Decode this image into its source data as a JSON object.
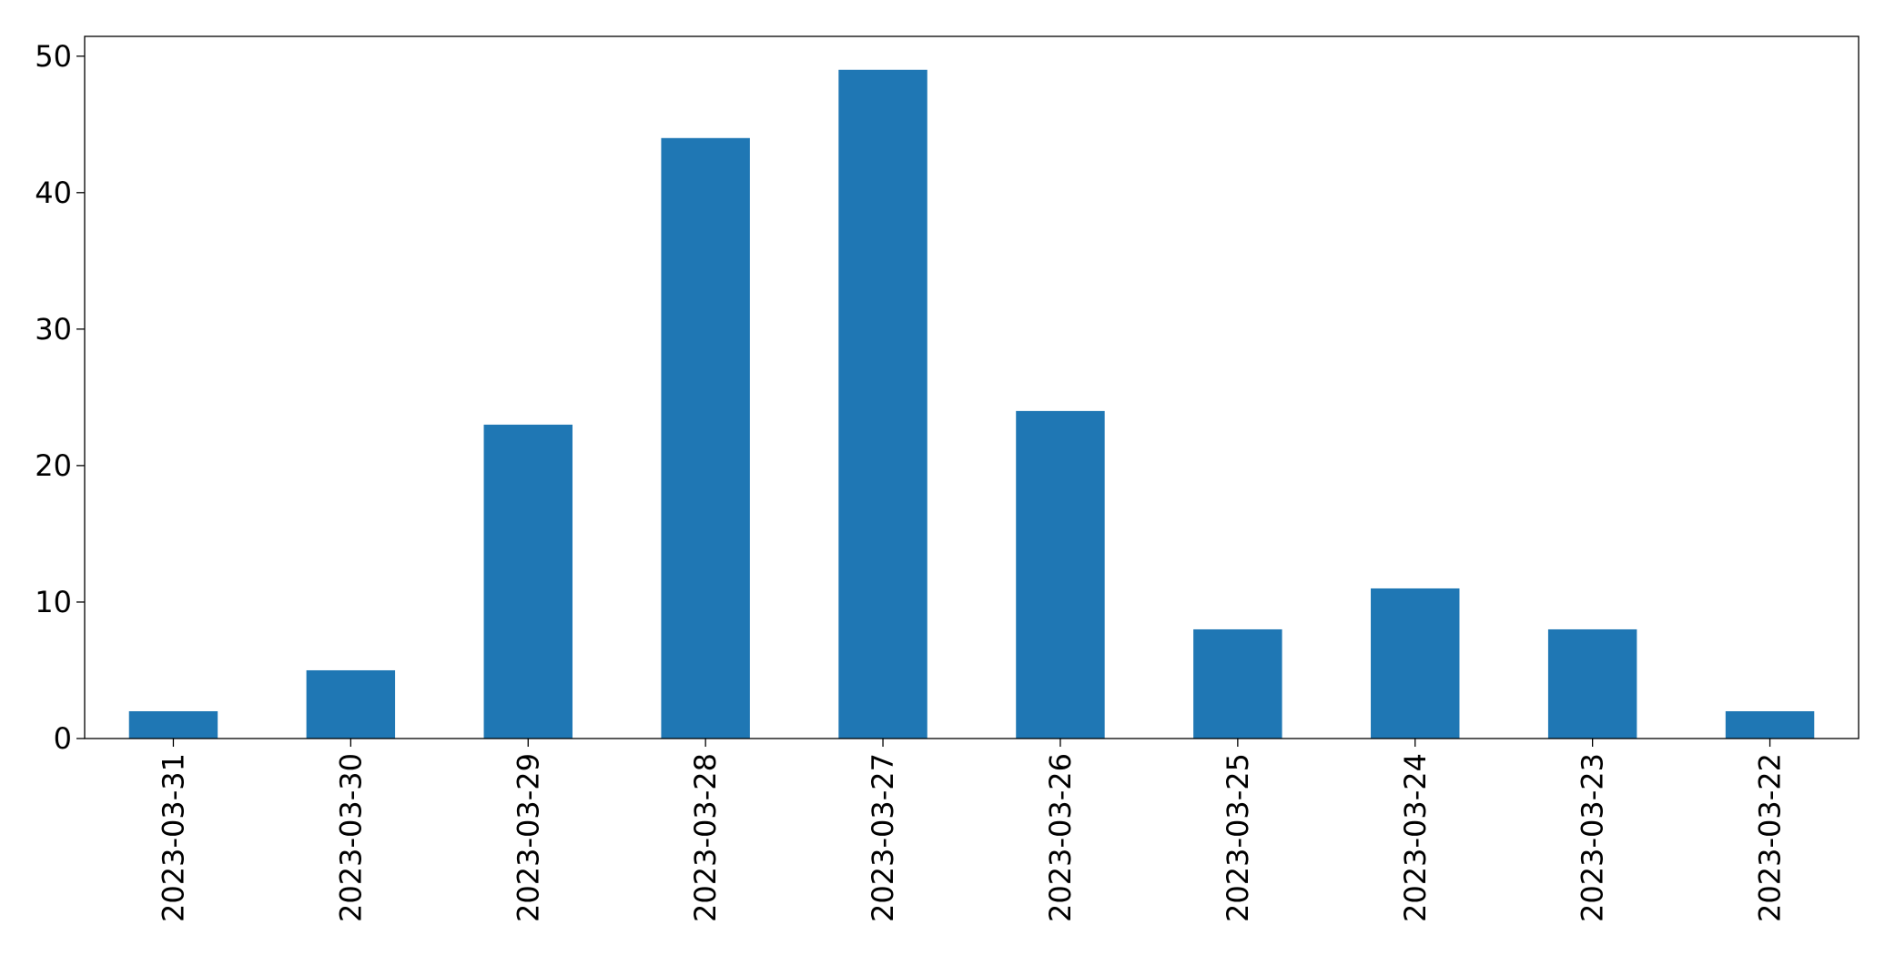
{
  "chart_data": {
    "type": "bar",
    "categories": [
      "2023-03-31",
      "2023-03-30",
      "2023-03-29",
      "2023-03-28",
      "2023-03-27",
      "2023-03-26",
      "2023-03-25",
      "2023-03-24",
      "2023-03-23",
      "2023-03-22"
    ],
    "values": [
      2,
      5,
      23,
      44,
      49,
      24,
      8,
      11,
      8,
      2
    ],
    "color": "#1f77b4",
    "ylim": [
      0,
      51.45
    ],
    "yticks": [
      0,
      10,
      20,
      30,
      40,
      50
    ],
    "grid": false
  }
}
